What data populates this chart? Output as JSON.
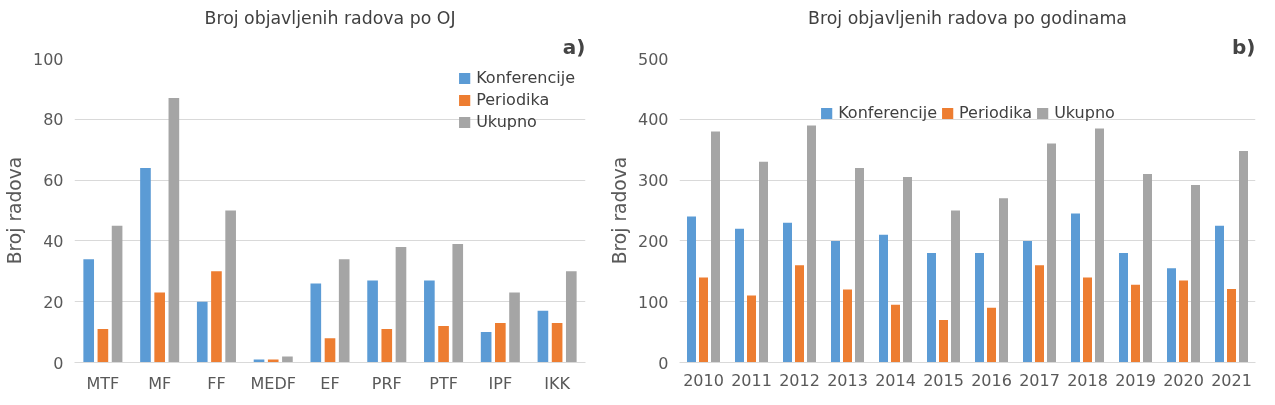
{
  "chart_data": [
    {
      "type": "bar",
      "title": "Broj objavljenih radova po OJ",
      "ylabel": "Broj radova",
      "annotations": [
        "a)"
      ],
      "categories": [
        "MTF",
        "MF",
        "FF",
        "MEDF",
        "EF",
        "PRF",
        "PTF",
        "IPF",
        "IKK"
      ],
      "series": [
        {
          "name": "Konferencije",
          "color": "#5b9bd5",
          "values": [
            34,
            64,
            20,
            1,
            26,
            27,
            27,
            10,
            17
          ]
        },
        {
          "name": "Periodika",
          "color": "#ed7d31",
          "values": [
            11,
            23,
            30,
            1,
            8,
            11,
            12,
            13,
            13
          ]
        },
        {
          "name": "Ukupno",
          "color": "#a5a5a5",
          "values": [
            45,
            87,
            50,
            2,
            34,
            38,
            39,
            23,
            30
          ]
        }
      ],
      "ylim": [
        0,
        100
      ],
      "yticks": [
        0,
        20,
        40,
        60,
        80,
        100
      ],
      "grid": "y",
      "legend": "top right"
    },
    {
      "type": "bar",
      "title": "Broj objavljenih radova po godinama",
      "ylabel": "Broj radova",
      "annotations": [
        "b)"
      ],
      "categories": [
        "2010",
        "2011",
        "2012",
        "2013",
        "2014",
        "2015",
        "2016",
        "2017",
        "2018",
        "2019",
        "2020",
        "2021"
      ],
      "series": [
        {
          "name": "Konferencije",
          "color": "#5b9bd5",
          "values": [
            240,
            220,
            230,
            200,
            210,
            180,
            180,
            200,
            245,
            180,
            155,
            225
          ]
        },
        {
          "name": "Periodika",
          "color": "#ed7d31",
          "values": [
            140,
            110,
            160,
            120,
            95,
            70,
            90,
            160,
            140,
            128,
            135,
            121
          ]
        },
        {
          "name": "Ukupno",
          "color": "#a5a5a5",
          "values": [
            380,
            330,
            390,
            320,
            305,
            250,
            270,
            360,
            385,
            310,
            292,
            348
          ]
        }
      ],
      "ylim": [
        0,
        500
      ],
      "yticks": [
        0,
        100,
        200,
        300,
        400,
        500
      ],
      "grid": "y",
      "legend": "top"
    }
  ]
}
